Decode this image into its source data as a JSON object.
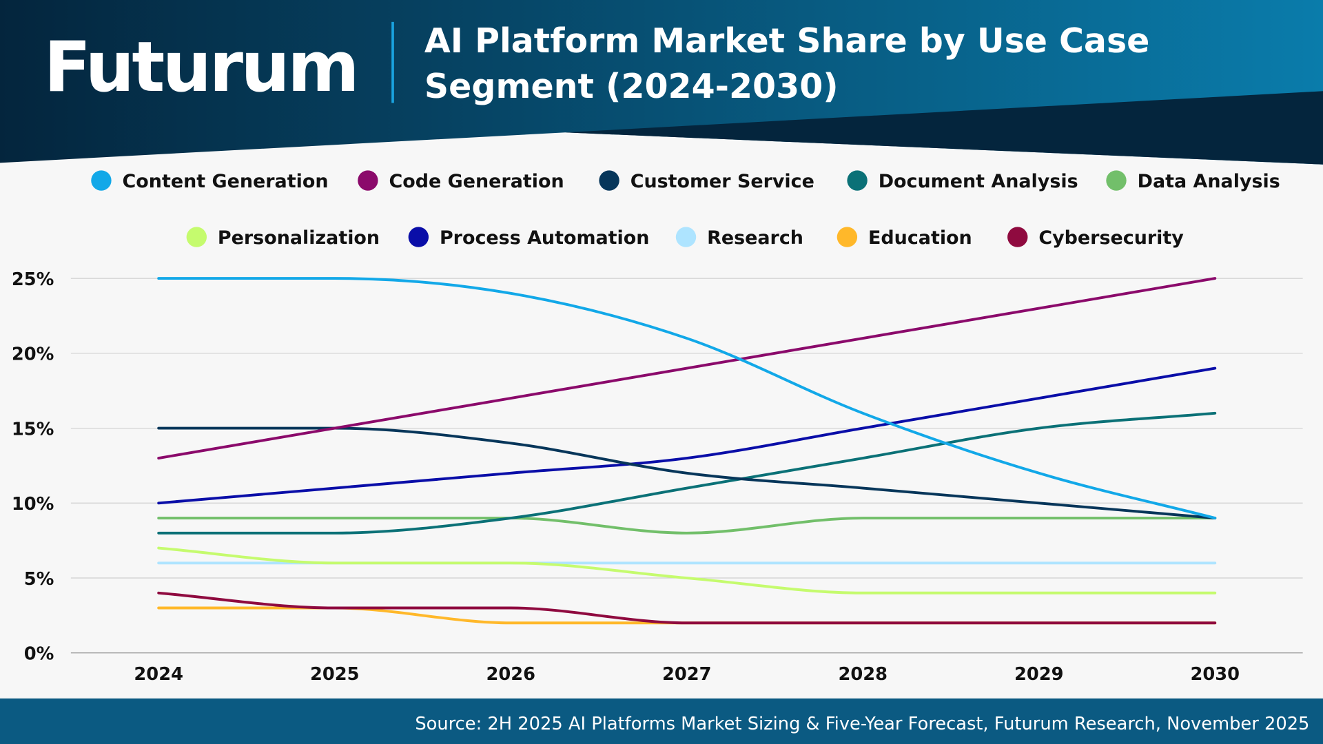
{
  "header": {
    "logo": "Futurum",
    "title_line1": "AI Platform Market Share by Use Case",
    "title_line2": "Segment (2024-2030)"
  },
  "footer": {
    "source": "Source: 2H 2025 AI Platforms Market Sizing & Five-Year Forecast, Futurum Research, November 2025"
  },
  "colors": {
    "header_dark": "#04253d",
    "header_light": "#0a7cab",
    "footer": "#0b5a82",
    "accent_divider": "#1aa3e0",
    "grid": "#d0d0d0"
  },
  "chart_data": {
    "type": "line",
    "title": "AI Platform Market Share by Use Case Segment (2024-2030)",
    "categories": [
      "2024",
      "2025",
      "2026",
      "2027",
      "2028",
      "2029",
      "2030"
    ],
    "ylim": [
      0,
      25
    ],
    "yticks": [
      "0%",
      "5%",
      "10%",
      "15%",
      "20%",
      "25%"
    ],
    "ytick_values": [
      0,
      5,
      10,
      15,
      20,
      25
    ],
    "grid": true,
    "legend_placement": "top",
    "series": [
      {
        "name": "Content Generation",
        "color": "#12a8e8",
        "values": [
          25,
          25,
          24,
          21,
          16,
          12,
          9
        ]
      },
      {
        "name": "Code Generation",
        "color": "#8b0a6b",
        "values": [
          13,
          15,
          17,
          19,
          21,
          23,
          25
        ]
      },
      {
        "name": "Customer Service",
        "color": "#07365a",
        "values": [
          15,
          15,
          14,
          12,
          11,
          10,
          9
        ]
      },
      {
        "name": "Document Analysis",
        "color": "#0b7177",
        "values": [
          8,
          8,
          9,
          11,
          13,
          15,
          16
        ]
      },
      {
        "name": "Data Analysis",
        "color": "#72bf6a",
        "values": [
          9,
          9,
          9,
          8,
          9,
          9,
          9
        ]
      },
      {
        "name": "Personalization",
        "color": "#c5fb6e",
        "values": [
          7,
          6,
          6,
          5,
          4,
          4,
          4
        ]
      },
      {
        "name": "Process Automation",
        "color": "#0a0ea8",
        "values": [
          10,
          11,
          12,
          13,
          15,
          17,
          19
        ]
      },
      {
        "name": "Research",
        "color": "#aee4ff",
        "values": [
          6,
          6,
          6,
          6,
          6,
          6,
          6
        ]
      },
      {
        "name": "Education",
        "color": "#ffb82a",
        "values": [
          3,
          3,
          2,
          2,
          2,
          2,
          2
        ]
      },
      {
        "name": "Cybersecurity",
        "color": "#8f0a3f",
        "values": [
          4,
          3,
          3,
          2,
          2,
          2,
          2
        ]
      }
    ]
  }
}
